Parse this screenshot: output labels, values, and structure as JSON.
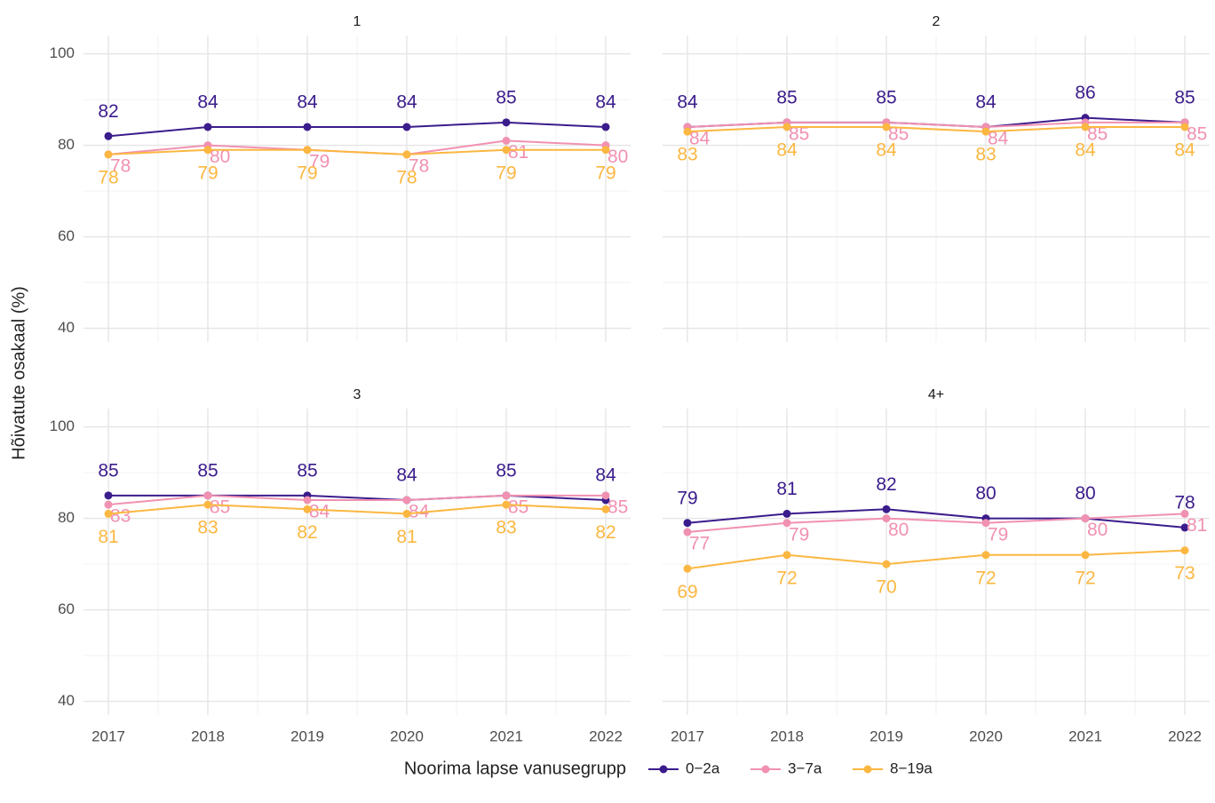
{
  "y_label": "Hõivatute osakaal (%)",
  "legend_title": "Noorima lapse vanusegrupp",
  "chart_data": [
    {
      "type": "line",
      "title": "1",
      "x": [
        2017,
        2018,
        2019,
        2020,
        2021,
        2022
      ],
      "xlim": [
        2016.75,
        2022.25
      ],
      "xticks": [
        2017,
        2018,
        2019,
        2020,
        2021,
        2022
      ],
      "ylim": [
        37,
        104
      ],
      "yticks": [
        40,
        60,
        80,
        100
      ],
      "grid": true,
      "series": [
        {
          "name": "0−2a",
          "color": "#3b1c8c",
          "values": [
            82,
            84,
            84,
            84,
            85,
            84
          ]
        },
        {
          "name": "3−7a",
          "color": "#f191b1",
          "values": [
            78,
            80,
            79,
            78,
            81,
            80
          ]
        },
        {
          "name": "8−19a",
          "color": "#fbb741",
          "values": [
            78,
            79,
            79,
            78,
            79,
            79
          ]
        }
      ]
    },
    {
      "type": "line",
      "title": "2",
      "x": [
        2017,
        2018,
        2019,
        2020,
        2021,
        2022
      ],
      "xlim": [
        2016.75,
        2022.25
      ],
      "xticks": [
        2017,
        2018,
        2019,
        2020,
        2021,
        2022
      ],
      "ylim": [
        37,
        104
      ],
      "yticks": [
        40,
        60,
        80,
        100
      ],
      "grid": true,
      "series": [
        {
          "name": "0−2a",
          "color": "#3b1c8c",
          "values": [
            84,
            85,
            85,
            84,
            86,
            85
          ]
        },
        {
          "name": "3−7a",
          "color": "#f191b1",
          "values": [
            84,
            85,
            85,
            84,
            85,
            85
          ]
        },
        {
          "name": "8−19a",
          "color": "#fbb741",
          "values": [
            83,
            84,
            84,
            83,
            84,
            84
          ]
        }
      ]
    },
    {
      "type": "line",
      "title": "3",
      "x": [
        2017,
        2018,
        2019,
        2020,
        2021,
        2022
      ],
      "xlim": [
        2016.75,
        2022.25
      ],
      "xticks": [
        2017,
        2018,
        2019,
        2020,
        2021,
        2022
      ],
      "ylim": [
        37,
        104
      ],
      "yticks": [
        40,
        60,
        80,
        100
      ],
      "grid": true,
      "series": [
        {
          "name": "0−2a",
          "color": "#3b1c8c",
          "values": [
            85,
            85,
            85,
            84,
            85,
            84
          ]
        },
        {
          "name": "3−7a",
          "color": "#f191b1",
          "values": [
            83,
            85,
            84,
            84,
            85,
            85
          ]
        },
        {
          "name": "8−19a",
          "color": "#fbb741",
          "values": [
            81,
            83,
            82,
            81,
            83,
            82
          ]
        }
      ]
    },
    {
      "type": "line",
      "title": "4+",
      "x": [
        2017,
        2018,
        2019,
        2020,
        2021,
        2022
      ],
      "xlim": [
        2016.75,
        2022.25
      ],
      "xticks": [
        2017,
        2018,
        2019,
        2020,
        2021,
        2022
      ],
      "ylim": [
        37,
        104
      ],
      "yticks": [
        40,
        60,
        80,
        100
      ],
      "grid": true,
      "series": [
        {
          "name": "0−2a",
          "color": "#3b1c8c",
          "values": [
            79,
            81,
            82,
            80,
            80,
            78
          ]
        },
        {
          "name": "3−7a",
          "color": "#f191b1",
          "values": [
            77,
            79,
            80,
            79,
            80,
            81
          ]
        },
        {
          "name": "8−19a",
          "color": "#fbb741",
          "values": [
            69,
            72,
            70,
            72,
            72,
            73
          ]
        }
      ]
    }
  ]
}
